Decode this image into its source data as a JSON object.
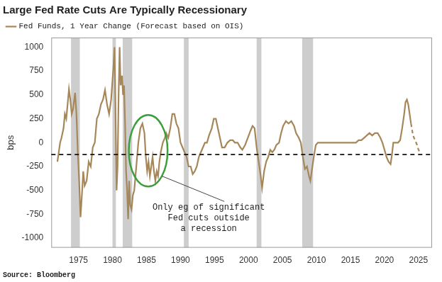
{
  "chart_data": {
    "type": "line",
    "title": "Large Fed Rate Cuts Are Typically Recessionary",
    "source": "Source: Bloomberg",
    "ylabel": "bps",
    "legend": "top-left",
    "grid": false,
    "xlim": [
      1971,
      2027
    ],
    "xticks": [
      1975,
      1980,
      1985,
      1990,
      1995,
      2000,
      2005,
      2010,
      2015,
      2020,
      2025
    ],
    "ylim": [
      -1100,
      1100
    ],
    "yticks": [
      -1000,
      -750,
      -500,
      -250,
      0,
      250,
      500,
      750,
      1000
    ],
    "x": [
      1971.9,
      1972.1,
      1972.3,
      1972.5,
      1972.8,
      1973.0,
      1973.2,
      1973.4,
      1973.6,
      1973.8,
      1974.0,
      1974.2,
      1974.5,
      1974.7,
      1974.9,
      1975.1,
      1975.3,
      1975.5,
      1975.7,
      1975.9,
      1976.2,
      1976.5,
      1976.8,
      1977.1,
      1977.4,
      1977.7,
      1978.0,
      1978.3,
      1978.6,
      1978.9,
      1979.2,
      1979.5,
      1979.8,
      1980.1,
      1980.3,
      1980.45,
      1980.6,
      1980.75,
      1980.9,
      1981.05,
      1981.2,
      1981.4,
      1981.55,
      1981.7,
      1981.85,
      1982.0,
      1982.15,
      1982.3,
      1982.45,
      1982.6,
      1982.8,
      1983.0,
      1983.2,
      1983.5,
      1983.8,
      1984.1,
      1984.4,
      1984.7,
      1984.9,
      1985.1,
      1985.3,
      1985.5,
      1985.7,
      1985.9,
      1986.1,
      1986.3,
      1986.5,
      1986.7,
      1986.9,
      1987.1,
      1987.4,
      1987.7,
      1987.9,
      1988.2,
      1988.5,
      1988.8,
      1989.1,
      1989.4,
      1989.7,
      1990.0,
      1990.3,
      1990.6,
      1990.9,
      1991.2,
      1991.5,
      1991.8,
      1992.1,
      1992.4,
      1992.7,
      1993.0,
      1993.3,
      1993.6,
      1993.9,
      1994.2,
      1994.6,
      1994.9,
      1995.2,
      1995.5,
      1995.8,
      1996.1,
      1996.5,
      1996.9,
      1997.3,
      1997.7,
      1998.0,
      1998.4,
      1998.8,
      1999.1,
      1999.5,
      1999.9,
      2000.3,
      2000.6,
      2000.9,
      2001.2,
      2001.5,
      2001.8,
      2002.0,
      2002.3,
      2002.6,
      2002.9,
      2003.2,
      2003.5,
      2003.8,
      2004.1,
      2004.5,
      2004.8,
      2005.1,
      2005.5,
      2005.9,
      2006.3,
      2006.7,
      2007.0,
      2007.4,
      2007.7,
      2008.0,
      2008.3,
      2008.6,
      2008.9,
      2009.1,
      2009.3,
      2009.6,
      2009.9,
      2010.2,
      2012.0,
      2014.0,
      2015.8,
      2016.2,
      2016.6,
      2017.0,
      2017.4,
      2017.8,
      2018.2,
      2018.6,
      2019.0,
      2019.4,
      2019.7,
      2020.0,
      2020.3,
      2020.6,
      2020.9,
      2021.1,
      2021.3,
      2022.0,
      2022.3,
      2022.6,
      2022.9,
      2023.1,
      2023.3,
      2023.5,
      2023.7,
      2023.9,
      2024.2,
      2024.5,
      2024.8,
      2025.0,
      2025.2
    ],
    "series": [
      {
        "name": "Fed Funds, 1 Year Change (Forecast based on OIS)",
        "color": "#a6875a",
        "values": [
          -200,
          -100,
          0,
          50,
          150,
          300,
          250,
          400,
          560,
          450,
          300,
          350,
          520,
          300,
          -100,
          -400,
          -780,
          -550,
          -300,
          -450,
          -400,
          -200,
          -250,
          -50,
          0,
          250,
          300,
          400,
          450,
          550,
          400,
          300,
          450,
          750,
          1000,
          300,
          -500,
          -250,
          500,
          1000,
          600,
          700,
          500,
          600,
          200,
          -300,
          -500,
          -800,
          -400,
          -650,
          -700,
          -550,
          -500,
          -250,
          0,
          150,
          200,
          100,
          -150,
          -300,
          -200,
          -350,
          -250,
          -150,
          -300,
          -400,
          -300,
          -350,
          -200,
          -100,
          0,
          50,
          100,
          50,
          150,
          300,
          300,
          200,
          150,
          0,
          -50,
          -100,
          -150,
          -250,
          -250,
          -330,
          -300,
          -250,
          -150,
          -100,
          -50,
          0,
          0,
          75,
          150,
          250,
          250,
          150,
          50,
          -50,
          -50,
          0,
          25,
          25,
          0,
          0,
          -50,
          -75,
          -25,
          50,
          125,
          175,
          150,
          -50,
          -200,
          -350,
          -475,
          -300,
          -200,
          -150,
          -75,
          -100,
          -75,
          -25,
          0,
          100,
          175,
          225,
          200,
          225,
          175,
          100,
          50,
          0,
          -150,
          -275,
          -250,
          -350,
          -400,
          -300,
          -150,
          -25,
          0,
          0,
          0,
          0,
          25,
          25,
          50,
          75,
          100,
          75,
          100,
          100,
          50,
          0,
          -75,
          -150,
          -200,
          -225,
          -125,
          0,
          0,
          25,
          150,
          300,
          425,
          450,
          400,
          300,
          200,
          75,
          25,
          -25,
          -75,
          -100
        ]
      }
    ],
    "forecast_from": 2023.9,
    "recessions": [
      [
        1973.9,
        1975.2
      ],
      [
        1980.0,
        1980.5
      ],
      [
        1981.5,
        1982.9
      ],
      [
        1990.5,
        1991.2
      ],
      [
        2001.2,
        2001.9
      ],
      [
        2007.9,
        2009.5
      ]
    ],
    "reference_line": -125,
    "highlight": {
      "xlim": [
        1982.4,
        1988.1
      ],
      "ylim": [
        -460,
        290
      ],
      "color": "#3c9e3c",
      "text": [
        "Only eg of significant",
        "Fed cuts outside",
        "a recession"
      ]
    }
  }
}
